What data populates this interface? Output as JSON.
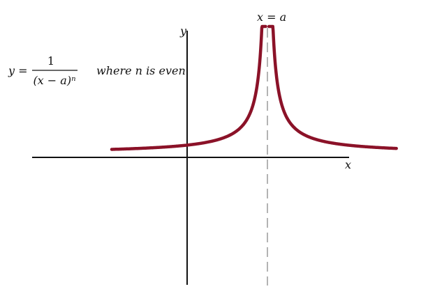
{
  "chart_data": {
    "type": "line",
    "title": "",
    "xlabel": "x",
    "ylabel": "y",
    "grid": false,
    "asymptote_label": "x = a",
    "equation": {
      "lhs": "y =",
      "numerator": "1",
      "denominator": "(x − a)ⁿ",
      "note": "where n is even"
    },
    "colors": {
      "curve": "#8b1228",
      "axes": "#111111",
      "asymptote": "#9a9a9a"
    }
  }
}
